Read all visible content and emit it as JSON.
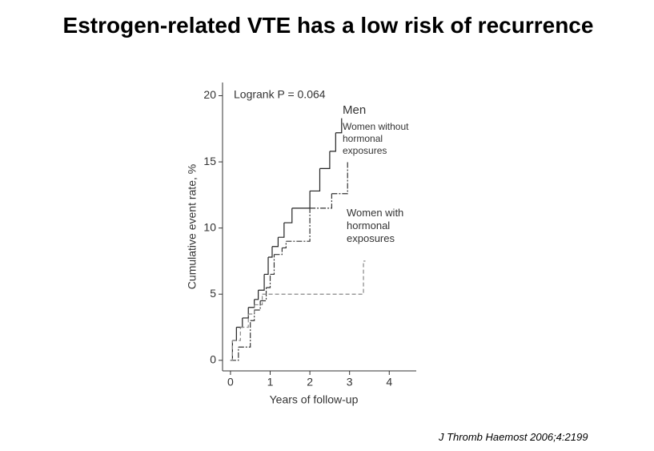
{
  "page_title": "Estrogen-related VTE has a low risk of recurrence",
  "citation": "J Thromb Haemost 2006;4:2199",
  "chart_data": {
    "type": "step",
    "annotation": "Logrank P = 0.064",
    "xlabel": "Years of follow-up",
    "ylabel": "Cumulative event rate, %",
    "xlim": [
      -0.2,
      4.68
    ],
    "xticks": [
      0,
      1,
      2,
      3,
      4
    ],
    "ylim": [
      -0.8,
      21
    ],
    "yticks": [
      0,
      5,
      10,
      15,
      20
    ],
    "series": [
      {
        "name": "Men",
        "color": "#222222",
        "dash": "solid",
        "x": [
          0,
          0.05,
          0.15,
          0.3,
          0.45,
          0.6,
          0.7,
          0.85,
          0.95,
          1.05,
          1.2,
          1.35,
          1.55,
          2.0,
          2.25,
          2.5,
          2.65,
          2.8
        ],
        "values": [
          0,
          1.5,
          2.5,
          3.2,
          4,
          4.6,
          5.3,
          6.5,
          7.8,
          8.6,
          9.3,
          10.4,
          11.5,
          12.8,
          14.5,
          15.8,
          17.2,
          18.3
        ]
      },
      {
        "name": "Women without hormonal exposures",
        "color": "#333333",
        "dash": "dashdot",
        "x": [
          0,
          0.2,
          0.5,
          0.6,
          0.75,
          0.9,
          1.0,
          1.1,
          1.3,
          1.4,
          2.0,
          2.55,
          2.95
        ],
        "values": [
          0,
          1,
          3,
          3.8,
          4.5,
          5.5,
          6.5,
          8,
          8.5,
          9,
          11.5,
          12.6,
          15
        ]
      },
      {
        "name": "Women with hormonal exposures",
        "color": "#888888",
        "dash": "dashed",
        "x": [
          0,
          0.05,
          0.25,
          0.45,
          0.6,
          0.8,
          3.35,
          3.4
        ],
        "values": [
          0,
          1.5,
          2.5,
          3.5,
          4.2,
          5,
          7.5,
          7.5
        ]
      }
    ]
  }
}
